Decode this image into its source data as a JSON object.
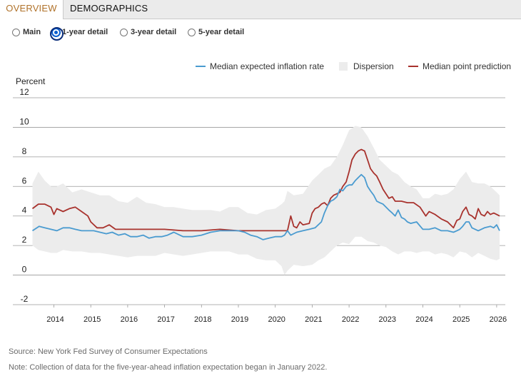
{
  "tabs": [
    {
      "label": "OVERVIEW",
      "active": true
    },
    {
      "label": "DEMOGRAPHICS",
      "active": false
    }
  ],
  "radios": [
    {
      "label": "Main",
      "selected": false
    },
    {
      "label": "1-year detail",
      "selected": true
    },
    {
      "label": "3-year detail",
      "selected": false
    },
    {
      "label": "5-year detail",
      "selected": false
    }
  ],
  "colors": {
    "median_expected": "#4a9bd0",
    "dispersion": "#ececec",
    "median_point": "#a8322d",
    "tab_active_text": "#b0722a"
  },
  "source": "Source: New York Fed Survey of Consumer Expectations",
  "note": "Note: Collection of data for the five-year-ahead inflation expectation began in January 2022.",
  "chart_data": {
    "type": "line",
    "ylabel": "Percent",
    "ylim": [
      -2,
      12
    ],
    "yticks": [
      -2,
      0,
      2,
      4,
      6,
      8,
      10,
      12
    ],
    "xticks": [
      "2014",
      "2015",
      "2016",
      "2017",
      "2018",
      "2019",
      "2020",
      "2021",
      "2022",
      "2023",
      "2024",
      "2025",
      "2026"
    ],
    "xlim": [
      2013.42,
      2026.17
    ],
    "legend": [
      "Median expected inflation rate",
      "Dispersion",
      "Median point prediction"
    ],
    "grid": true,
    "series": [
      {
        "name": "Median expected inflation rate",
        "x": [
          2013.42,
          2013.6,
          2013.75,
          2013.92,
          2014.08,
          2014.25,
          2014.42,
          2014.58,
          2014.75,
          2014.92,
          2015.08,
          2015.25,
          2015.42,
          2015.58,
          2015.75,
          2015.92,
          2016.08,
          2016.25,
          2016.42,
          2016.58,
          2016.75,
          2016.92,
          2017.08,
          2017.25,
          2017.5,
          2017.75,
          2018.0,
          2018.25,
          2018.5,
          2018.75,
          2019.0,
          2019.17,
          2019.33,
          2019.5,
          2019.67,
          2019.83,
          2020.0,
          2020.17,
          2020.25,
          2020.33,
          2020.42,
          2020.58,
          2020.75,
          2020.92,
          2021.08,
          2021.25,
          2021.33,
          2021.42,
          2021.5,
          2021.58,
          2021.67,
          2021.75,
          2021.83,
          2021.92,
          2022.0,
          2022.08,
          2022.17,
          2022.25,
          2022.33,
          2022.42,
          2022.5,
          2022.58,
          2022.67,
          2022.75,
          2022.83,
          2022.92,
          2023.0,
          2023.08,
          2023.17,
          2023.25,
          2023.33,
          2023.42,
          2023.5,
          2023.58,
          2023.67,
          2023.83,
          2024.0,
          2024.17,
          2024.33,
          2024.5,
          2024.67,
          2024.83,
          2024.92,
          2025.0,
          2025.08,
          2025.17,
          2025.25,
          2025.33,
          2025.5,
          2025.67,
          2025.83,
          2025.92,
          2026.0,
          2026.08
        ],
        "values": [
          3.0,
          3.3,
          3.2,
          3.1,
          3.0,
          3.2,
          3.2,
          3.1,
          3.0,
          3.0,
          3.0,
          2.9,
          2.8,
          2.9,
          2.7,
          2.8,
          2.6,
          2.6,
          2.7,
          2.5,
          2.6,
          2.6,
          2.7,
          2.9,
          2.6,
          2.6,
          2.7,
          2.9,
          3.0,
          3.0,
          3.0,
          2.9,
          2.7,
          2.6,
          2.4,
          2.5,
          2.6,
          2.6,
          2.7,
          3.0,
          2.7,
          2.9,
          3.0,
          3.1,
          3.2,
          3.6,
          4.2,
          4.7,
          5.0,
          5.1,
          5.3,
          5.8,
          5.7,
          6.0,
          6.1,
          6.1,
          6.4,
          6.6,
          6.8,
          6.6,
          6.0,
          5.7,
          5.4,
          5.0,
          4.9,
          4.8,
          4.6,
          4.4,
          4.2,
          4.0,
          4.4,
          3.9,
          3.8,
          3.6,
          3.5,
          3.6,
          3.1,
          3.1,
          3.2,
          3.0,
          3.0,
          2.9,
          3.0,
          3.1,
          3.3,
          3.6,
          3.6,
          3.2,
          3.0,
          3.2,
          3.3,
          3.2,
          3.4,
          3.0
        ]
      },
      {
        "name": "Median point prediction",
        "x": [
          2013.42,
          2013.58,
          2013.75,
          2013.92,
          2014.0,
          2014.08,
          2014.25,
          2014.42,
          2014.58,
          2014.75,
          2014.92,
          2015.0,
          2015.17,
          2015.33,
          2015.5,
          2015.67,
          2016.0,
          2016.5,
          2017.0,
          2017.5,
          2018.0,
          2018.5,
          2019.0,
          2019.5,
          2020.0,
          2020.25,
          2020.33,
          2020.42,
          2020.5,
          2020.58,
          2020.67,
          2020.75,
          2020.92,
          2021.0,
          2021.08,
          2021.17,
          2021.25,
          2021.33,
          2021.42,
          2021.5,
          2021.58,
          2021.67,
          2021.75,
          2021.83,
          2021.92,
          2022.0,
          2022.08,
          2022.17,
          2022.25,
          2022.33,
          2022.42,
          2022.5,
          2022.58,
          2022.67,
          2022.75,
          2022.83,
          2022.92,
          2023.0,
          2023.08,
          2023.17,
          2023.25,
          2023.42,
          2023.58,
          2023.75,
          2023.92,
          2024.0,
          2024.08,
          2024.17,
          2024.33,
          2024.5,
          2024.67,
          2024.83,
          2024.92,
          2025.0,
          2025.08,
          2025.17,
          2025.25,
          2025.33,
          2025.42,
          2025.5,
          2025.58,
          2025.67,
          2025.75,
          2025.83,
          2025.92,
          2026.0,
          2026.08
        ],
        "values": [
          4.5,
          4.8,
          4.8,
          4.6,
          4.1,
          4.5,
          4.3,
          4.5,
          4.6,
          4.3,
          4.0,
          3.6,
          3.2,
          3.2,
          3.4,
          3.1,
          3.1,
          3.1,
          3.1,
          3.0,
          3.0,
          3.1,
          3.0,
          3.0,
          3.0,
          3.0,
          3.0,
          4.0,
          3.3,
          3.2,
          3.6,
          3.4,
          3.5,
          4.2,
          4.5,
          4.6,
          4.8,
          4.9,
          4.7,
          5.2,
          5.4,
          5.5,
          5.6,
          6.0,
          6.3,
          7.0,
          7.8,
          8.2,
          8.4,
          8.5,
          8.4,
          7.8,
          7.2,
          6.9,
          6.7,
          6.3,
          5.8,
          5.5,
          5.2,
          5.3,
          5.0,
          5.0,
          4.9,
          4.9,
          4.6,
          4.3,
          4.0,
          4.3,
          4.1,
          3.8,
          3.6,
          3.2,
          3.7,
          3.8,
          4.3,
          4.6,
          4.1,
          4.0,
          3.8,
          4.5,
          4.1,
          4.0,
          4.3,
          4.1,
          4.2,
          4.1,
          4.0
        ]
      },
      {
        "name": "Dispersion",
        "x": [
          2013.42,
          2013.58,
          2013.75,
          2013.92,
          2014.08,
          2014.25,
          2014.5,
          2014.75,
          2015.0,
          2015.25,
          2015.5,
          2015.75,
          2016.0,
          2016.25,
          2016.5,
          2016.75,
          2017.0,
          2017.25,
          2017.5,
          2017.75,
          2018.0,
          2018.25,
          2018.5,
          2018.75,
          2019.0,
          2019.25,
          2019.5,
          2019.75,
          2020.0,
          2020.17,
          2020.25,
          2020.33,
          2020.5,
          2020.75,
          2021.0,
          2021.17,
          2021.33,
          2021.5,
          2021.67,
          2021.83,
          2022.0,
          2022.17,
          2022.33,
          2022.5,
          2022.67,
          2022.83,
          2023.0,
          2023.17,
          2023.33,
          2023.5,
          2023.67,
          2023.83,
          2024.0,
          2024.17,
          2024.33,
          2024.5,
          2024.67,
          2024.83,
          2025.0,
          2025.17,
          2025.33,
          2025.5,
          2025.67,
          2025.83,
          2026.0,
          2026.08
        ],
        "upper": [
          6.2,
          7.0,
          6.4,
          6.0,
          6.0,
          6.2,
          5.6,
          5.8,
          5.6,
          5.4,
          5.4,
          5.0,
          4.9,
          5.3,
          4.9,
          4.8,
          4.6,
          4.6,
          4.5,
          4.4,
          4.4,
          4.4,
          4.3,
          4.6,
          4.6,
          4.2,
          4.1,
          4.4,
          4.5,
          4.8,
          5.0,
          5.7,
          5.4,
          5.5,
          6.4,
          6.8,
          7.2,
          7.4,
          8.0,
          8.8,
          9.8,
          10.1,
          10.0,
          9.4,
          8.6,
          7.8,
          7.4,
          7.0,
          6.8,
          6.3,
          6.0,
          5.8,
          5.2,
          5.2,
          5.5,
          5.4,
          5.5,
          5.8,
          6.5,
          7.0,
          6.3,
          6.2,
          6.2,
          6.0,
          5.6,
          5.4
        ],
        "lower": [
          2.0,
          1.7,
          1.6,
          1.5,
          1.5,
          1.7,
          1.6,
          1.6,
          1.5,
          1.5,
          1.4,
          1.3,
          1.2,
          1.3,
          1.3,
          1.3,
          1.5,
          1.4,
          1.3,
          1.4,
          1.5,
          1.6,
          1.6,
          1.6,
          1.4,
          1.4,
          1.1,
          1.0,
          1.0,
          0.6,
          0.0,
          0.3,
          0.7,
          0.6,
          0.7,
          1.0,
          1.2,
          1.6,
          2.0,
          2.2,
          2.1,
          2.6,
          2.6,
          2.3,
          2.2,
          2.0,
          1.9,
          1.6,
          1.4,
          1.6,
          1.6,
          1.5,
          1.6,
          1.6,
          1.4,
          1.5,
          1.4,
          1.2,
          1.6,
          1.5,
          1.2,
          1.5,
          1.3,
          1.1,
          1.0,
          1.1
        ]
      }
    ]
  }
}
